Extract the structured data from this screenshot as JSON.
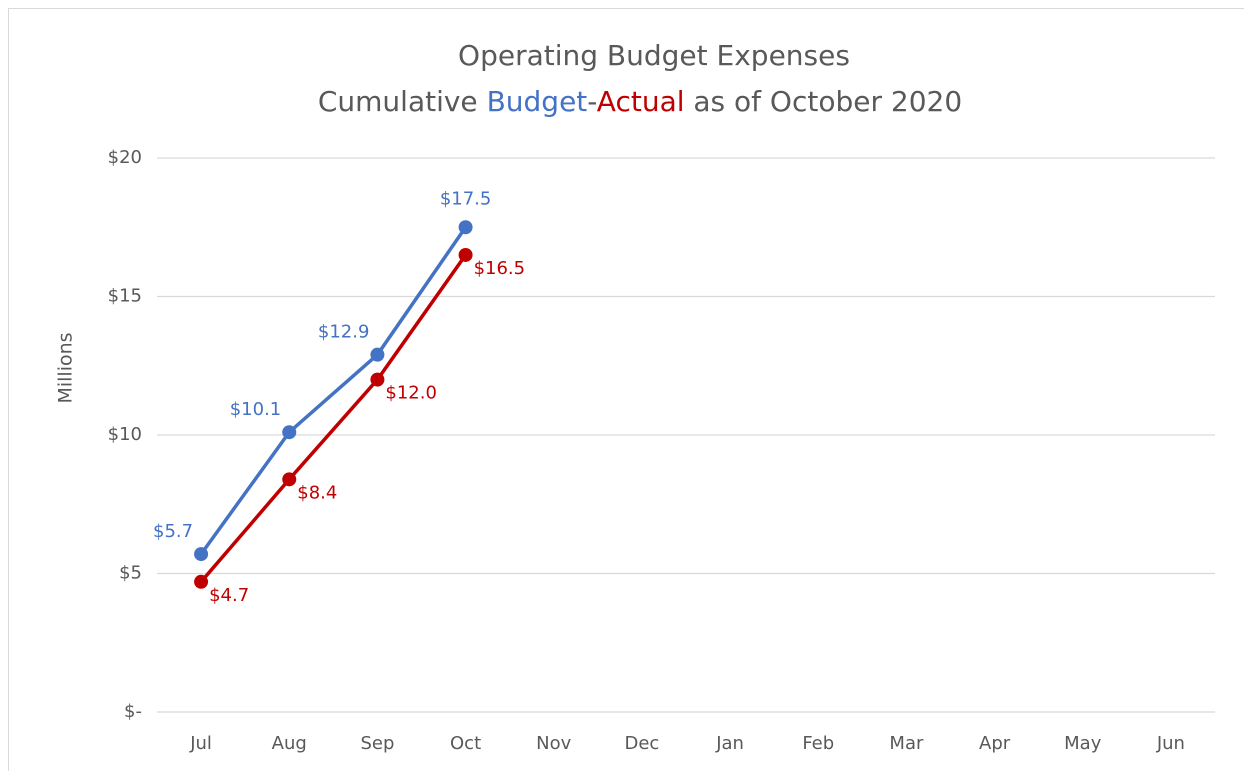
{
  "chart_data": {
    "type": "line",
    "title": "Operating Budget Expenses",
    "subtitle_parts": [
      {
        "text": "Cumulative ",
        "color": "#595959"
      },
      {
        "text": "Budget",
        "color": "#4472c4"
      },
      {
        "text": "-",
        "color": "#595959"
      },
      {
        "text": "Actual",
        "color": "#c00000"
      },
      {
        "text": " as of October 2020",
        "color": "#595959"
      }
    ],
    "y_label": "Millions",
    "categories": [
      "Jul",
      "Aug",
      "Sep",
      "Oct",
      "Nov",
      "Dec",
      "Jan",
      "Feb",
      "Mar",
      "Apr",
      "May",
      "Jun"
    ],
    "series": [
      {
        "name": "Budget",
        "color": "#4472c4",
        "values": [
          5.7,
          10.1,
          12.9,
          17.5,
          null,
          null,
          null,
          null,
          null,
          null,
          null,
          null
        ],
        "value_labels": [
          "$5.7",
          "$10.1",
          "$12.9",
          "$17.5",
          null,
          null,
          null,
          null,
          null,
          null,
          null,
          null
        ]
      },
      {
        "name": "Actual",
        "color": "#c00000",
        "values": [
          4.7,
          8.4,
          12.0,
          16.5,
          null,
          null,
          null,
          null,
          null,
          null,
          null,
          null
        ],
        "value_labels": [
          "$4.7",
          "$8.4",
          "$12.0",
          "$16.5",
          null,
          null,
          null,
          null,
          null,
          null,
          null,
          null
        ]
      }
    ],
    "ylim": [
      0,
      20
    ],
    "yticks": [
      {
        "value": 0,
        "label": "$-"
      },
      {
        "value": 5,
        "label": "$5"
      },
      {
        "value": 10,
        "label": "$10"
      },
      {
        "value": 15,
        "label": "$15"
      },
      {
        "value": 20,
        "label": "$20"
      }
    ],
    "grid": true
  }
}
